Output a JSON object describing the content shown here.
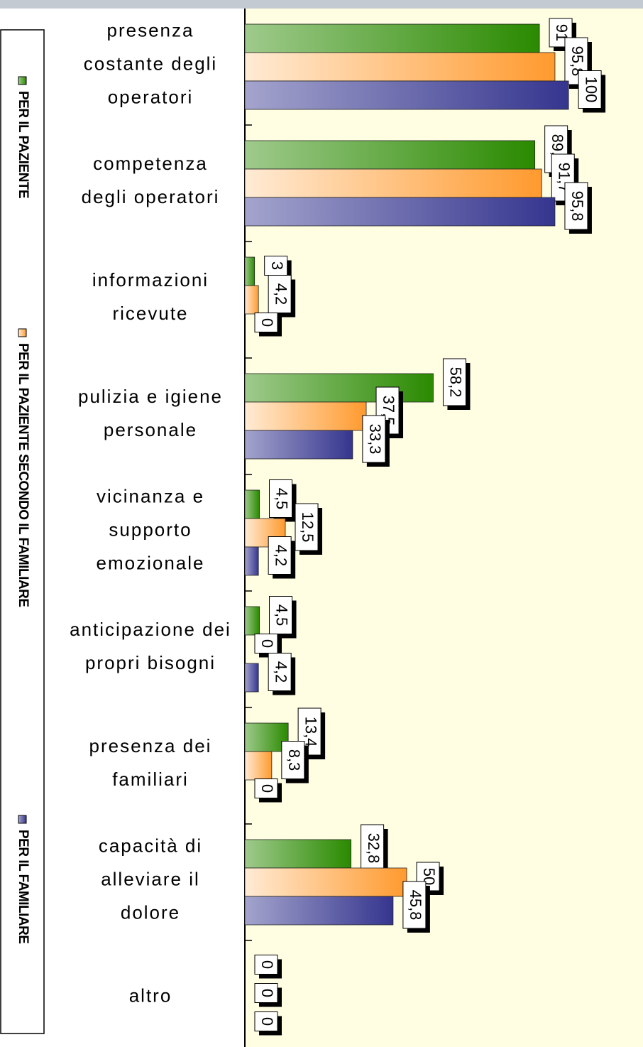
{
  "chart_data": {
    "type": "bar",
    "orientation": "horizontal",
    "categories": [
      "presenza costante degli operatori",
      "competenza degli operatori",
      "informazioni ricevute",
      "pulizia e igiene personale",
      "vicinanza e supporto emozionale",
      "anticipazione dei propri bisogni",
      "presenza dei familiari",
      "capacità di alleviare il dolore",
      "altro"
    ],
    "series": [
      {
        "name": "PER IL PAZIENTE",
        "color": "#2a8a00",
        "values": [
          91,
          89.6,
          3,
          58.2,
          4.5,
          4.5,
          13.4,
          32.8,
          0
        ],
        "value_labels": [
          "91",
          "89,6",
          "3",
          "58,2",
          "4,5",
          "4,5",
          "13,4",
          "32,8",
          "0"
        ]
      },
      {
        "name": "PER IL PAZIENTE SECONDO IL FAMILIARE",
        "color": "#ff9a2e",
        "values": [
          95.8,
          91.7,
          4.2,
          37.5,
          12.5,
          0,
          8.3,
          50,
          0
        ],
        "value_labels": [
          "95,8",
          "91,7",
          "4,2",
          "37,5",
          "12,5",
          "0",
          "8,3",
          "50",
          "0"
        ]
      },
      {
        "name": "PER IL FAMILIARE",
        "color": "#35358f",
        "values": [
          100,
          95.8,
          0,
          33.3,
          4.2,
          4.2,
          0,
          45.8,
          0
        ],
        "value_labels": [
          "100",
          "95,8",
          "0",
          "33,3",
          "4,2",
          "4,2",
          "0",
          "45,8",
          "0"
        ]
      }
    ],
    "xlim": [
      0,
      123
    ],
    "legend": "left"
  }
}
